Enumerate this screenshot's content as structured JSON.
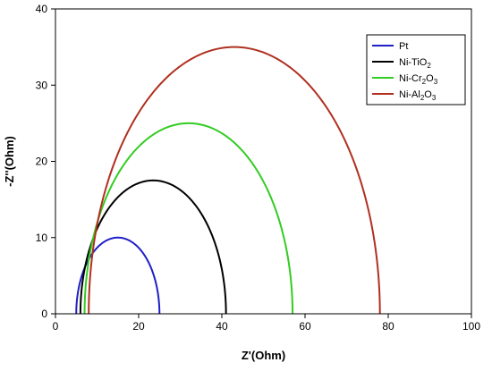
{
  "chart_data": {
    "type": "line",
    "xlabel": "Z'(Ohm)",
    "ylabel": "-Z''(Ohm)",
    "xlim": [
      0,
      100
    ],
    "ylim": [
      0,
      40
    ],
    "xticks": [
      "0",
      "20",
      "40",
      "60",
      "80",
      "100"
    ],
    "yticks": [
      "0",
      "10",
      "20",
      "30",
      "40"
    ],
    "legend_position": "top-right",
    "series": [
      {
        "name": "Pt",
        "name_main": "Pt",
        "name_sub": "",
        "name_tail": "",
        "color": "#1f1fc8",
        "x_start": 5,
        "x_end": 25,
        "peak": 10
      },
      {
        "name": "Ni-TiO2",
        "name_main": "Ni-TiO",
        "name_sub": "2",
        "name_tail": "",
        "color": "#000000",
        "x_start": 6,
        "x_end": 41,
        "peak": 17.5
      },
      {
        "name": "Ni-Cr2O3",
        "name_main": "Ni-Cr",
        "name_sub": "2",
        "name_tail": "O3",
        "name_tail_main": "O",
        "name_tail_sub": "3",
        "color": "#33cc22",
        "x_start": 7,
        "x_end": 57,
        "peak": 25
      },
      {
        "name": "Ni-Al2O3",
        "name_main": "Ni-Al",
        "name_sub": "2",
        "name_tail": "O3",
        "name_tail_main": "O",
        "name_tail_sub": "3",
        "color": "#b03020",
        "x_start": 8,
        "x_end": 78,
        "peak": 35
      }
    ]
  }
}
